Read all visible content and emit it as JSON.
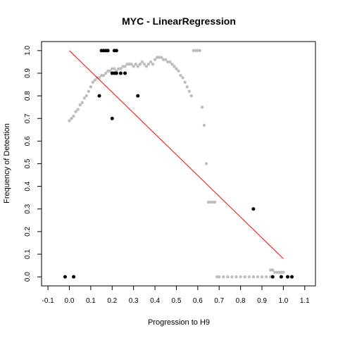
{
  "chart_data": {
    "type": "scatter",
    "title": "MYC - LinearRegression",
    "xlabel": "Progression to H9",
    "ylabel": "Frequency of Detection",
    "xlim": [
      -0.13,
      1.15
    ],
    "ylim": [
      -0.04,
      1.04
    ],
    "xticks": [
      "-0.1",
      "0.0",
      "0.1",
      "0.2",
      "0.3",
      "0.4",
      "0.5",
      "0.6",
      "0.7",
      "0.8",
      "0.9",
      "1.0",
      "1.1"
    ],
    "yticks": [
      "0.0",
      "0.1",
      "0.2",
      "0.3",
      "0.4",
      "0.5",
      "0.6",
      "0.7",
      "0.8",
      "0.9",
      "1.0"
    ],
    "grid": false,
    "colors": {
      "observed": "#000000",
      "smoothed": "#bebebe",
      "regression": "#ff0000"
    },
    "observed_points": [
      [
        -0.02,
        0.0
      ],
      [
        0.02,
        0.0
      ],
      [
        0.14,
        0.8
      ],
      [
        0.32,
        0.8
      ],
      [
        0.2,
        0.7
      ],
      [
        0.15,
        1.0
      ],
      [
        0.16,
        1.0
      ],
      [
        0.17,
        1.0
      ],
      [
        0.18,
        1.0
      ],
      [
        0.21,
        1.0
      ],
      [
        0.22,
        1.0
      ],
      [
        0.2,
        0.9
      ],
      [
        0.21,
        0.9
      ],
      [
        0.22,
        0.9
      ],
      [
        0.24,
        0.9
      ],
      [
        0.26,
        0.9
      ],
      [
        0.86,
        0.3
      ],
      [
        0.95,
        0.0
      ],
      [
        0.99,
        0.0
      ],
      [
        1.02,
        0.0
      ],
      [
        1.04,
        0.0
      ]
    ],
    "smoothed_points": [
      [
        0.0,
        0.69
      ],
      [
        0.01,
        0.7
      ],
      [
        0.02,
        0.71
      ],
      [
        0.03,
        0.73
      ],
      [
        0.04,
        0.74
      ],
      [
        0.05,
        0.76
      ],
      [
        0.06,
        0.77
      ],
      [
        0.07,
        0.79
      ],
      [
        0.08,
        0.8
      ],
      [
        0.09,
        0.82
      ],
      [
        0.1,
        0.84
      ],
      [
        0.11,
        0.86
      ],
      [
        0.12,
        0.87
      ],
      [
        0.13,
        0.88
      ],
      [
        0.14,
        0.88
      ],
      [
        0.15,
        0.89
      ],
      [
        0.16,
        0.89
      ],
      [
        0.17,
        0.9
      ],
      [
        0.18,
        0.91
      ],
      [
        0.19,
        0.91
      ],
      [
        0.2,
        0.92
      ],
      [
        0.21,
        0.92
      ],
      [
        0.22,
        0.91
      ],
      [
        0.23,
        0.92
      ],
      [
        0.24,
        0.92
      ],
      [
        0.25,
        0.93
      ],
      [
        0.26,
        0.93
      ],
      [
        0.27,
        0.94
      ],
      [
        0.28,
        0.94
      ],
      [
        0.29,
        0.94
      ],
      [
        0.3,
        0.93
      ],
      [
        0.31,
        0.94
      ],
      [
        0.32,
        0.93
      ],
      [
        0.33,
        0.94
      ],
      [
        0.34,
        0.95
      ],
      [
        0.35,
        0.94
      ],
      [
        0.36,
        0.93
      ],
      [
        0.37,
        0.94
      ],
      [
        0.38,
        0.95
      ],
      [
        0.39,
        0.94
      ],
      [
        0.4,
        0.96
      ],
      [
        0.41,
        0.97
      ],
      [
        0.42,
        0.97
      ],
      [
        0.43,
        0.97
      ],
      [
        0.44,
        0.96
      ],
      [
        0.45,
        0.96
      ],
      [
        0.46,
        0.95
      ],
      [
        0.47,
        0.95
      ],
      [
        0.48,
        0.94
      ],
      [
        0.49,
        0.93
      ],
      [
        0.5,
        0.92
      ],
      [
        0.51,
        0.91
      ],
      [
        0.52,
        0.89
      ],
      [
        0.53,
        0.88
      ],
      [
        0.54,
        0.86
      ],
      [
        0.55,
        0.84
      ],
      [
        0.56,
        0.82
      ],
      [
        0.57,
        0.8
      ],
      [
        0.58,
        1.0
      ],
      [
        0.59,
        1.0
      ],
      [
        0.6,
        1.0
      ],
      [
        0.61,
        1.0
      ],
      [
        0.62,
        0.75
      ],
      [
        0.63,
        0.67
      ],
      [
        0.64,
        0.5
      ],
      [
        0.65,
        0.33
      ],
      [
        0.66,
        0.33
      ],
      [
        0.67,
        0.33
      ],
      [
        0.68,
        0.33
      ],
      [
        0.69,
        0.0
      ],
      [
        0.7,
        0.0
      ],
      [
        0.72,
        0.0
      ],
      [
        0.74,
        0.0
      ],
      [
        0.76,
        0.0
      ],
      [
        0.78,
        0.0
      ],
      [
        0.8,
        0.0
      ],
      [
        0.82,
        0.0
      ],
      [
        0.84,
        0.0
      ],
      [
        0.86,
        0.0
      ],
      [
        0.88,
        0.0
      ],
      [
        0.9,
        0.0
      ],
      [
        0.92,
        0.0
      ],
      [
        0.94,
        0.0
      ],
      [
        0.94,
        0.03
      ],
      [
        0.95,
        0.03
      ],
      [
        0.96,
        0.02
      ],
      [
        0.97,
        0.02
      ],
      [
        0.98,
        0.02
      ],
      [
        0.99,
        0.02
      ],
      [
        1.0,
        0.02
      ]
    ],
    "regression_line": [
      [
        0.0,
        1.0
      ],
      [
        1.0,
        0.08
      ]
    ]
  }
}
